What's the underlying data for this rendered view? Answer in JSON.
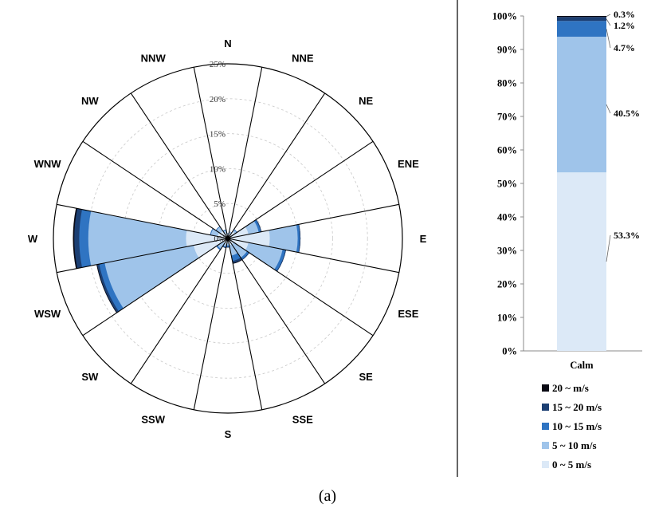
{
  "chart_data": [
    {
      "type": "windrose",
      "directions": [
        "N",
        "NNE",
        "NE",
        "ENE",
        "E",
        "ESE",
        "SE",
        "SSE",
        "S",
        "SSW",
        "SW",
        "WSW",
        "W",
        "WNW",
        "NW",
        "NNW"
      ],
      "ring_labels": [
        "0%",
        "5%",
        "10%",
        "15%",
        "20%",
        "25%"
      ],
      "rmax": 25,
      "series": [
        {
          "name": "0 ~ 5 m/s",
          "values": [
            0.6,
            0.8,
            1.2,
            3.0,
            6.0,
            3.0,
            1.0,
            1.0,
            0.7,
            0.8,
            0.8,
            5.0,
            6.0,
            1.5,
            1.3,
            0.8
          ]
        },
        {
          "name": "5 ~ 10 m/s",
          "values": [
            0.8,
            1.0,
            1.5,
            4.5,
            10.0,
            8.0,
            3.3,
            2.5,
            1.0,
            1.2,
            1.8,
            18.0,
            20.0,
            2.5,
            2.0,
            1.2
          ]
        },
        {
          "name": "10 ~ 15 m/s",
          "values": [
            0.8,
            1.0,
            1.6,
            4.8,
            10.3,
            8.4,
            3.6,
            3.3,
            1.2,
            1.3,
            2.0,
            18.8,
            21.3,
            2.6,
            2.1,
            1.3
          ]
        },
        {
          "name": "15 ~ 20 m/s",
          "values": [
            0.8,
            1.0,
            1.6,
            4.9,
            10.4,
            8.5,
            3.7,
            3.6,
            1.3,
            1.4,
            2.0,
            19.1,
            22.0,
            2.6,
            2.1,
            1.3
          ]
        },
        {
          "name": "20 ~ m/s",
          "values": [
            0.8,
            1.0,
            1.6,
            4.9,
            10.4,
            8.5,
            3.7,
            3.7,
            1.3,
            1.4,
            2.0,
            19.2,
            22.2,
            2.6,
            2.1,
            1.3
          ]
        }
      ]
    },
    {
      "type": "bar",
      "stacked": true,
      "categories": [
        "Calm"
      ],
      "yticks": [
        "0%",
        "10%",
        "20%",
        "30%",
        "40%",
        "50%",
        "60%",
        "70%",
        "80%",
        "90%",
        "100%"
      ],
      "ylim": [
        0,
        100
      ],
      "series": [
        {
          "name": "0 ~ 5 m/s",
          "values": [
            53.3
          ],
          "label": "53.3%"
        },
        {
          "name": "5 ~ 10 m/s",
          "values": [
            40.5
          ],
          "label": "40.5%"
        },
        {
          "name": "10 ~ 15 m/s",
          "values": [
            4.7
          ],
          "label": "4.7%"
        },
        {
          "name": "15 ~ 20 m/s",
          "values": [
            1.2
          ],
          "label": "1.2%"
        },
        {
          "name": "20 ~ m/s",
          "values": [
            0.3
          ],
          "label": "0.3%"
        }
      ]
    }
  ],
  "colors": {
    "0 ~ 5 m/s": "#dce9f7",
    "5 ~ 10 m/s": "#9fc4ea",
    "10 ~ 15 m/s": "#2f74c2",
    "15 ~ 20 m/s": "#1c3f73",
    "20 ~ m/s": "#0a0a14"
  },
  "legend": [
    "20 ~ m/s",
    "15 ~ 20 m/s",
    "10 ~ 15 m/s",
    "5 ~ 10 m/s",
    "0 ~ 5 m/s"
  ],
  "caption": "(a)"
}
